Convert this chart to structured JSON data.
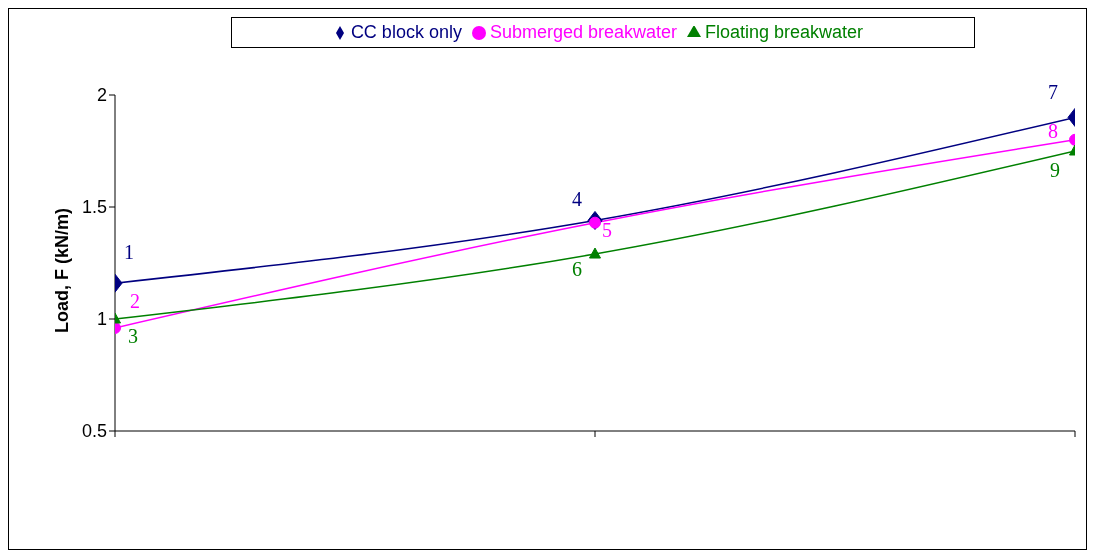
{
  "chart_data": {
    "type": "line",
    "ylabel": "Load, F (kN/m)",
    "categories": [
      null,
      null,
      null
    ],
    "ylim": [
      0.5,
      2
    ],
    "yticks": [
      0.5,
      1,
      1.5,
      2
    ],
    "grid": false,
    "legend": "top",
    "series": [
      {
        "name": "CC block only",
        "color": "#000080",
        "marker": "diamond",
        "values": [
          1.16,
          1.44,
          1.9
        ]
      },
      {
        "name": "Submerged breakwater",
        "color": "#ff00ff",
        "marker": "circle",
        "values": [
          0.96,
          1.43,
          1.8
        ]
      },
      {
        "name": "Floating breakwater",
        "color": "#008000",
        "marker": "triangle",
        "values": [
          1.0,
          1.29,
          1.75
        ]
      }
    ],
    "annotations": [
      "1",
      "2",
      "3",
      "4",
      "5",
      "6",
      "7",
      "8",
      "9"
    ]
  }
}
